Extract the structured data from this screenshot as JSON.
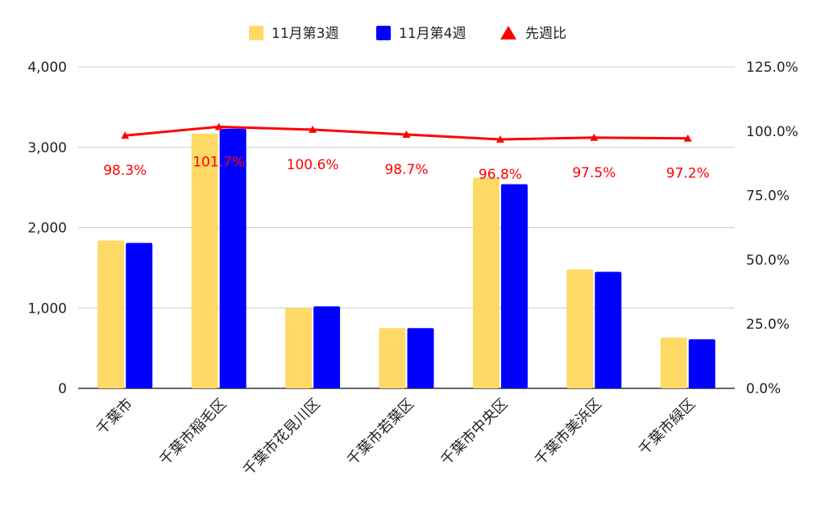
{
  "chart_data": {
    "type": "bar",
    "categories": [
      "千葉市",
      "千葉市稲毛区",
      "千葉市花見川区",
      "千葉市若葉区",
      "千葉市中央区",
      "千葉市美浜区",
      "千葉市緑区"
    ],
    "series": [
      {
        "name": "11月第3週",
        "type": "bar",
        "axis": "left",
        "color": "#FFD966",
        "values": [
          1840,
          3170,
          1000,
          750,
          2620,
          1480,
          630
        ]
      },
      {
        "name": "11月第4週",
        "type": "bar",
        "axis": "left",
        "color": "#0000FF",
        "values": [
          1810,
          3230,
          1020,
          750,
          2540,
          1450,
          610
        ]
      },
      {
        "name": "先週比",
        "type": "line",
        "axis": "right",
        "color": "#FF0000",
        "marker": "triangle",
        "values": [
          98.3,
          101.7,
          100.6,
          98.7,
          96.8,
          97.5,
          97.2
        ],
        "labels": [
          "98.3%",
          "101.7%",
          "100.6%",
          "98.7%",
          "96.8%",
          "97.5%",
          "97.2%"
        ]
      }
    ],
    "left_axis": {
      "min": 0,
      "max": 4000,
      "ticks": [
        0,
        1000,
        2000,
        3000,
        4000
      ],
      "tick_labels": [
        "0",
        "1,000",
        "2,000",
        "3,000",
        "4,000"
      ]
    },
    "right_axis": {
      "min": 0,
      "max": 125,
      "ticks": [
        0,
        25,
        50,
        75,
        100,
        125
      ],
      "tick_labels": [
        "0.0%",
        "25.0%",
        "50.0%",
        "75.0%",
        "100.0%",
        "125.0%"
      ]
    },
    "grid": true,
    "legend_position": "top-center"
  }
}
